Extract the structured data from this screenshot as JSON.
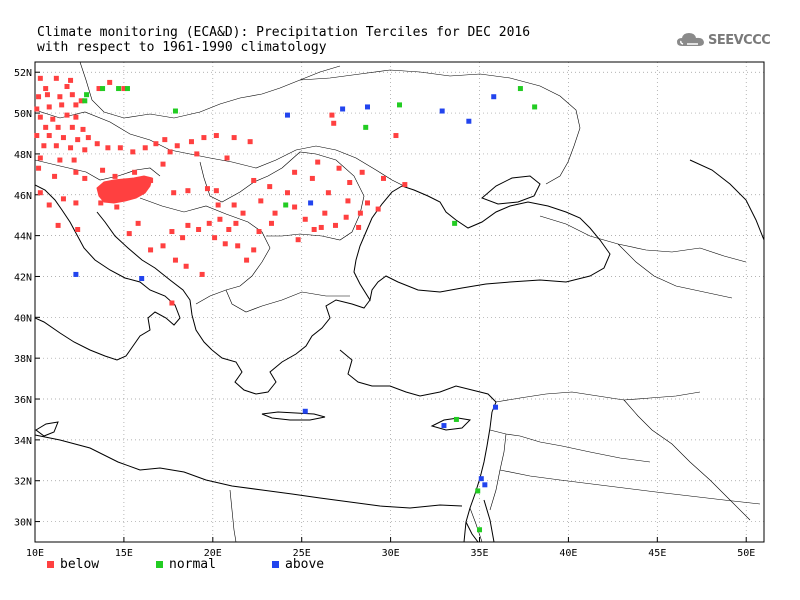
{
  "title": {
    "line1": "Climate monitoring (ECA&D): Precipitation Terciles for DEC 2016",
    "line2": "with respect to 1961-1990 climatology"
  },
  "logo": {
    "text": "SEEVCCC",
    "icon": "cloud-icon"
  },
  "axes": {
    "lon_range": [
      10,
      51
    ],
    "lat_range": [
      29,
      52.5
    ],
    "lon_ticks": [
      "10E",
      "15E",
      "20E",
      "25E",
      "30E",
      "35E",
      "40E",
      "45E",
      "50E"
    ],
    "lat_ticks": [
      "30N",
      "32N",
      "34N",
      "36N",
      "38N",
      "40N",
      "42N",
      "44N",
      "46N",
      "48N",
      "50N",
      "52N"
    ],
    "grid": true
  },
  "legend": [
    {
      "key": "below",
      "label": "below",
      "color": "#ff4040"
    },
    {
      "key": "normal",
      "label": "normal",
      "color": "#22cc22"
    },
    {
      "key": "above",
      "label": "above",
      "color": "#2244ee"
    }
  ],
  "stations": {
    "below": [
      [
        10.3,
        51.7
      ],
      [
        11.2,
        51.7
      ],
      [
        12,
        51.6
      ],
      [
        10.6,
        51.2
      ],
      [
        11.8,
        51.3
      ],
      [
        13.6,
        51.2
      ],
      [
        14.2,
        51.5
      ],
      [
        15,
        51.2
      ],
      [
        10.2,
        50.8
      ],
      [
        10.7,
        50.9
      ],
      [
        11.4,
        50.8
      ],
      [
        12.1,
        50.9
      ],
      [
        12.6,
        50.6
      ],
      [
        10.1,
        50.2
      ],
      [
        10.8,
        50.3
      ],
      [
        11.5,
        50.4
      ],
      [
        12.3,
        50.4
      ],
      [
        10.3,
        49.8
      ],
      [
        11.0,
        49.7
      ],
      [
        11.8,
        49.9
      ],
      [
        12.3,
        49.8
      ],
      [
        10.6,
        49.3
      ],
      [
        11.3,
        49.3
      ],
      [
        12.1,
        49.3
      ],
      [
        12.7,
        49.2
      ],
      [
        10.1,
        48.9
      ],
      [
        10.8,
        48.9
      ],
      [
        11.6,
        48.8
      ],
      [
        12.4,
        48.7
      ],
      [
        13,
        48.8
      ],
      [
        10.5,
        48.4
      ],
      [
        11.2,
        48.4
      ],
      [
        12,
        48.3
      ],
      [
        12.8,
        48.2
      ],
      [
        13.5,
        48.5
      ],
      [
        14.1,
        48.3
      ],
      [
        14.8,
        48.3
      ],
      [
        15.5,
        48.1
      ],
      [
        16.2,
        48.3
      ],
      [
        16.8,
        48.5
      ],
      [
        17.3,
        48.7
      ],
      [
        18,
        48.4
      ],
      [
        18.8,
        48.6
      ],
      [
        19.5,
        48.8
      ],
      [
        20.2,
        48.9
      ],
      [
        21.2,
        48.8
      ],
      [
        22.1,
        48.6
      ],
      [
        17.6,
        48.1
      ],
      [
        19.1,
        48
      ],
      [
        20.8,
        47.8
      ],
      [
        10.3,
        47.8
      ],
      [
        11.4,
        47.7
      ],
      [
        12.2,
        47.7
      ],
      [
        10.2,
        47.3
      ],
      [
        11.1,
        46.9
      ],
      [
        12.3,
        47.1
      ],
      [
        12.8,
        46.8
      ],
      [
        13.8,
        47.2
      ],
      [
        14.5,
        46.9
      ],
      [
        15.6,
        47.1
      ],
      [
        16.5,
        46.7
      ],
      [
        17.8,
        46.1
      ],
      [
        18.6,
        46.2
      ],
      [
        19.7,
        46.3
      ],
      [
        20.3,
        45.5
      ],
      [
        21.2,
        45.5
      ],
      [
        22.3,
        46.7
      ],
      [
        23.2,
        46.4
      ],
      [
        24.2,
        46.1
      ],
      [
        24.6,
        47.1
      ],
      [
        25.6,
        46.8
      ],
      [
        26.5,
        46.1
      ],
      [
        27.1,
        47.3
      ],
      [
        27.7,
        46.6
      ],
      [
        28.4,
        47.1
      ],
      [
        27.6,
        45.7
      ],
      [
        26.3,
        45.1
      ],
      [
        26.9,
        44.5
      ],
      [
        27.5,
        44.9
      ],
      [
        28.2,
        44.4
      ],
      [
        25.7,
        44.3
      ],
      [
        25.2,
        44.8
      ],
      [
        24.6,
        45.4
      ],
      [
        23.5,
        45.1
      ],
      [
        23.3,
        44.6
      ],
      [
        22.6,
        44.2
      ],
      [
        21.3,
        44.6
      ],
      [
        21.7,
        45.1
      ],
      [
        20.4,
        44.8
      ],
      [
        19.8,
        44.6
      ],
      [
        20.9,
        44.3
      ],
      [
        20.1,
        43.9
      ],
      [
        20.7,
        43.6
      ],
      [
        21.4,
        43.5
      ],
      [
        22.3,
        43.3
      ],
      [
        21.9,
        42.8
      ],
      [
        19.2,
        44.3
      ],
      [
        18.6,
        44.5
      ],
      [
        18.3,
        43.9
      ],
      [
        17.7,
        44.2
      ],
      [
        17.2,
        43.5
      ],
      [
        16.5,
        43.3
      ],
      [
        15.8,
        44.6
      ],
      [
        15.3,
        44.1
      ],
      [
        14.6,
        45.4
      ],
      [
        13.7,
        45.6
      ],
      [
        12.3,
        45.6
      ],
      [
        11.6,
        45.8
      ],
      [
        10.8,
        45.5
      ],
      [
        10.3,
        46.1
      ],
      [
        12.4,
        44.3
      ],
      [
        11.3,
        44.5
      ],
      [
        17.9,
        42.8
      ],
      [
        18.5,
        42.5
      ],
      [
        19.4,
        42.1
      ],
      [
        17.7,
        40.7
      ],
      [
        20.2,
        46.2
      ],
      [
        26.8,
        49.5
      ],
      [
        30.3,
        48.9
      ],
      [
        30.8,
        46.5
      ],
      [
        29.3,
        45.3
      ],
      [
        28.7,
        45.6
      ],
      [
        26.7,
        49.9
      ],
      [
        17.2,
        47.5
      ],
      [
        22.7,
        45.7
      ],
      [
        25.9,
        47.6
      ],
      [
        28.3,
        45.1
      ],
      [
        26.1,
        44.4
      ],
      [
        24.8,
        43.8
      ],
      [
        29.6,
        46.8
      ]
    ],
    "below_region": "Slovenia",
    "normal": [
      [
        13.8,
        51.2
      ],
      [
        12.9,
        50.9
      ],
      [
        12.8,
        50.6
      ],
      [
        14.7,
        51.2
      ],
      [
        15.2,
        51.2
      ],
      [
        17.9,
        50.1
      ],
      [
        24.1,
        45.5
      ],
      [
        30.5,
        50.4
      ],
      [
        28.6,
        49.3
      ],
      [
        37.3,
        51.2
      ],
      [
        38.1,
        50.3
      ],
      [
        33.6,
        44.6
      ],
      [
        33.7,
        35
      ],
      [
        34.9,
        31.5
      ],
      [
        35,
        29.6
      ]
    ],
    "above": [
      [
        24.2,
        49.9
      ],
      [
        27.3,
        50.2
      ],
      [
        28.7,
        50.3
      ],
      [
        32.9,
        50.1
      ],
      [
        34.4,
        49.6
      ],
      [
        35.8,
        50.8
      ],
      [
        25.5,
        45.6
      ],
      [
        12.3,
        42.1
      ],
      [
        16,
        41.9
      ],
      [
        25.2,
        35.4
      ],
      [
        33,
        34.7
      ],
      [
        35.9,
        35.6
      ],
      [
        35.1,
        32.1
      ],
      [
        35.3,
        31.8
      ]
    ]
  }
}
